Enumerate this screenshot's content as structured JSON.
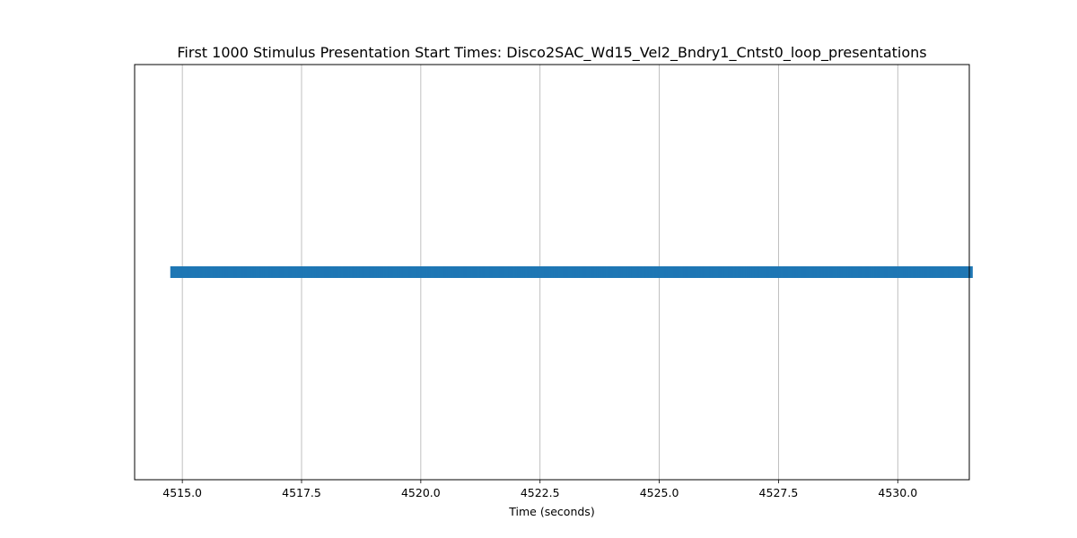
{
  "chart_data": {
    "type": "scatter",
    "title": "First 1000 Stimulus Presentation Start Times: Disco2SAC_Wd15_Vel2_Bndry1_Cntst0_loop_presentations",
    "xlabel": "Time (seconds)",
    "ylabel": "",
    "xlim": [
      4514.0,
      4531.5
    ],
    "ylim": [
      0,
      2
    ],
    "xticks": [
      4515.0,
      4517.5,
      4520.0,
      4522.5,
      4525.0,
      4527.5,
      4530.0
    ],
    "xtick_labels": [
      "4515.0",
      "4517.5",
      "4520.0",
      "4522.5",
      "4525.0",
      "4527.5",
      "4530.0"
    ],
    "yticks_visible": false,
    "grid": "x-major",
    "legend": "none",
    "marker": "square",
    "series": [
      {
        "x_start": 4514.87,
        "x_end": 4531.45,
        "count": 1000,
        "y": 1,
        "color": "#1f77b4"
      }
    ]
  }
}
